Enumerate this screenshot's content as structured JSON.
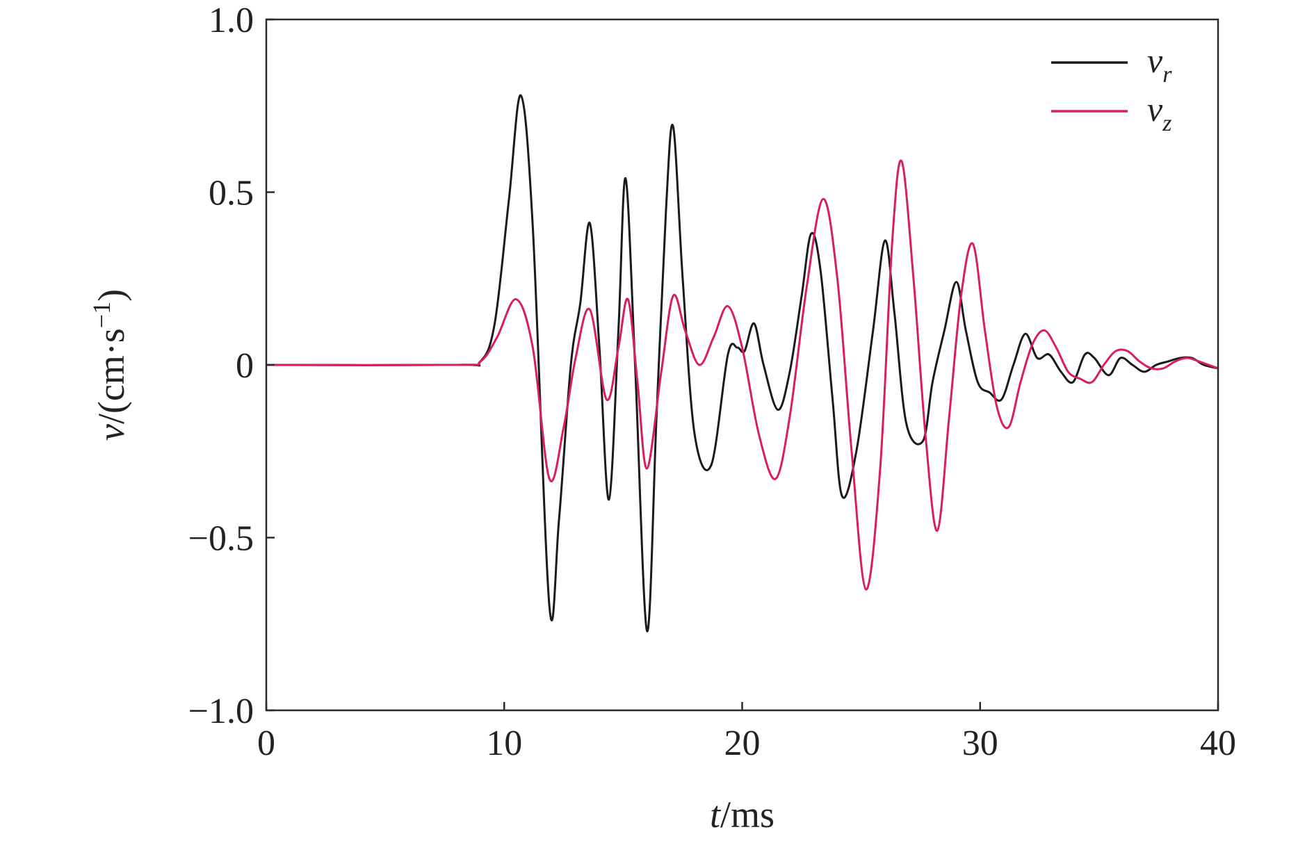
{
  "chart_data": {
    "type": "line",
    "title": "",
    "xlabel": {
      "var": "t",
      "unit": "/ms"
    },
    "ylabel": {
      "var": "v",
      "unit_prefix": "/(cm·s",
      "unit_sup": "−1",
      "unit_suffix": ")"
    },
    "xlim": [
      0,
      40
    ],
    "ylim": [
      -1.0,
      1.0
    ],
    "x_ticks": [
      0,
      10,
      20,
      30,
      40
    ],
    "x_tick_labels": [
      "0",
      "10",
      "20",
      "30",
      "40"
    ],
    "y_ticks": [
      1.0,
      0.5,
      0,
      -0.5,
      -1.0
    ],
    "y_tick_labels": [
      "1.0",
      "0.5",
      "0",
      "−0.5",
      "−1.0"
    ],
    "grid": false,
    "legend_position": "top-right",
    "series": [
      {
        "name": "v_r",
        "label_main": "v",
        "label_sub": "r",
        "color": "#1a1a1a",
        "x": [
          0,
          8.0,
          9.0,
          9.6,
          10.2,
          10.7,
          11.2,
          11.9,
          12.3,
          12.8,
          13.2,
          13.6,
          14.0,
          14.4,
          14.8,
          15.1,
          15.5,
          16.0,
          16.4,
          16.8,
          17.1,
          17.5,
          18.0,
          18.7,
          19.4,
          19.8,
          20.1,
          20.5,
          20.9,
          21.5,
          22.0,
          22.5,
          22.9,
          23.3,
          23.8,
          24.2,
          24.8,
          25.5,
          26.0,
          26.4,
          26.9,
          27.6,
          28.0,
          28.5,
          29.0,
          29.4,
          29.9,
          30.4,
          30.9,
          31.4,
          31.9,
          32.4,
          32.9,
          33.4,
          33.9,
          34.4,
          34.8,
          35.4,
          35.9,
          36.4,
          36.9,
          37.4,
          37.9,
          38.4,
          38.9,
          39.4,
          40.0
        ],
        "y": [
          0,
          0,
          0.01,
          0.12,
          0.48,
          0.78,
          0.4,
          -0.7,
          -0.45,
          0.0,
          0.18,
          0.41,
          0.05,
          -0.39,
          0.1,
          0.54,
          0.0,
          -0.77,
          -0.15,
          0.45,
          0.69,
          0.25,
          -0.2,
          -0.29,
          0.03,
          0.05,
          0.04,
          0.12,
          0.0,
          -0.13,
          -0.02,
          0.2,
          0.38,
          0.27,
          -0.1,
          -0.38,
          -0.25,
          0.1,
          0.36,
          0.15,
          -0.17,
          -0.22,
          -0.05,
          0.1,
          0.24,
          0.1,
          -0.05,
          -0.08,
          -0.1,
          0.0,
          0.09,
          0.02,
          0.03,
          -0.02,
          -0.05,
          0.03,
          0.02,
          -0.03,
          0.02,
          0.0,
          -0.02,
          0.0,
          0.01,
          0.02,
          0.02,
          0.0,
          -0.01
        ]
      },
      {
        "name": "v_z",
        "label_main": "v",
        "label_sub": "z",
        "color": "#d91e5b",
        "x": [
          0,
          8.0,
          9.0,
          9.7,
          10.5,
          11.2,
          11.9,
          12.5,
          13.0,
          13.6,
          14.3,
          14.8,
          15.2,
          15.6,
          16.0,
          16.6,
          17.1,
          17.6,
          18.2,
          18.8,
          19.4,
          20.0,
          20.7,
          21.4,
          22.0,
          22.7,
          23.4,
          24.0,
          24.6,
          25.2,
          25.8,
          26.3,
          26.7,
          27.2,
          27.7,
          28.2,
          28.7,
          29.2,
          29.7,
          30.2,
          30.7,
          31.2,
          31.7,
          32.2,
          32.7,
          33.2,
          33.7,
          34.2,
          34.7,
          35.2,
          35.7,
          36.2,
          36.7,
          37.2,
          37.7,
          38.2,
          38.7,
          39.2,
          40.0
        ],
        "y": [
          0,
          0,
          0.01,
          0.08,
          0.19,
          0.05,
          -0.33,
          -0.18,
          0.02,
          0.16,
          -0.1,
          0.05,
          0.19,
          -0.05,
          -0.3,
          -0.02,
          0.2,
          0.1,
          0.0,
          0.08,
          0.17,
          0.05,
          -0.2,
          -0.33,
          -0.15,
          0.22,
          0.48,
          0.25,
          -0.25,
          -0.65,
          -0.3,
          0.35,
          0.59,
          0.25,
          -0.2,
          -0.48,
          -0.15,
          0.2,
          0.35,
          0.1,
          -0.12,
          -0.18,
          -0.05,
          0.06,
          0.1,
          0.05,
          -0.02,
          -0.04,
          -0.05,
          0.0,
          0.04,
          0.04,
          0.01,
          -0.01,
          -0.01,
          0.01,
          0.02,
          0.01,
          -0.01
        ]
      }
    ]
  }
}
